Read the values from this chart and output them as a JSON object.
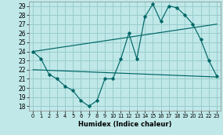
{
  "xlabel": "Humidex (Indice chaleur)",
  "bg_color": "#c0e8e8",
  "grid_color": "#98cccc",
  "line_color": "#006666",
  "xlim": [
    -0.5,
    23.5
  ],
  "ylim": [
    17.5,
    29.5
  ],
  "xticks": [
    0,
    1,
    2,
    3,
    4,
    5,
    6,
    7,
    8,
    9,
    10,
    11,
    12,
    13,
    14,
    15,
    16,
    17,
    18,
    19,
    20,
    21,
    22,
    23
  ],
  "yticks": [
    18,
    19,
    20,
    21,
    22,
    23,
    24,
    25,
    26,
    27,
    28,
    29
  ],
  "main_x": [
    0,
    1,
    2,
    3,
    4,
    5,
    6,
    7,
    8,
    9,
    10,
    11,
    12,
    13,
    14,
    15,
    16,
    17,
    18,
    19,
    20,
    21,
    22,
    23
  ],
  "main_y": [
    24.0,
    23.2,
    21.5,
    21.0,
    20.2,
    19.7,
    18.6,
    18.0,
    18.6,
    21.0,
    21.0,
    23.2,
    26.0,
    23.2,
    27.8,
    29.2,
    27.3,
    29.0,
    28.8,
    28.0,
    27.0,
    25.3,
    23.0,
    21.3
  ],
  "line1_x": [
    0,
    23
  ],
  "line1_y": [
    24.0,
    27.0
  ],
  "line2_x": [
    0,
    23
  ],
  "line2_y": [
    22.0,
    21.2
  ]
}
